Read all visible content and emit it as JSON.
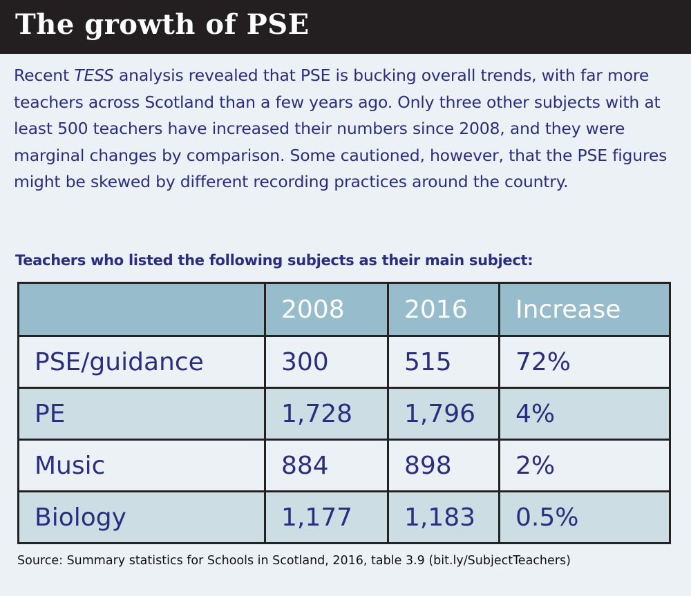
{
  "title": "The growth of PSE",
  "intro": {
    "before": "Recent ",
    "italic": "TESS",
    "after": " analysis revealed that PSE is bucking overall trends, with far more teachers across Scotland than a few years ago. Only three other subjects with at least 500 teachers have increased their numbers since 2008, and they were marginal changes by comparison. Some cautioned, however, that the PSE figures might be skewed by different recording practices around the country."
  },
  "colors": {
    "title_bar": "#231f20",
    "header": "#97bccb",
    "text": "#2b2e7f",
    "stripe": "#cddde4",
    "background": "#ecf1f6"
  },
  "chart_data": {
    "type": "table",
    "title": "Teachers who listed the following subjects as their main subject:",
    "columns": [
      "",
      "2008",
      "2016",
      "Increase"
    ],
    "rows": [
      [
        "PSE/guidance",
        "300",
        "515",
        "72%"
      ],
      [
        "PE",
        "1,728",
        "1,796",
        "4%"
      ],
      [
        "Music",
        "884",
        "898",
        "2%"
      ],
      [
        "Biology",
        "1,177",
        "1,183",
        "0.5%"
      ]
    ],
    "source": "Source: Summary statistics for Schools in Scotland, 2016, table 3.9 (bit.ly/SubjectTeachers)"
  }
}
